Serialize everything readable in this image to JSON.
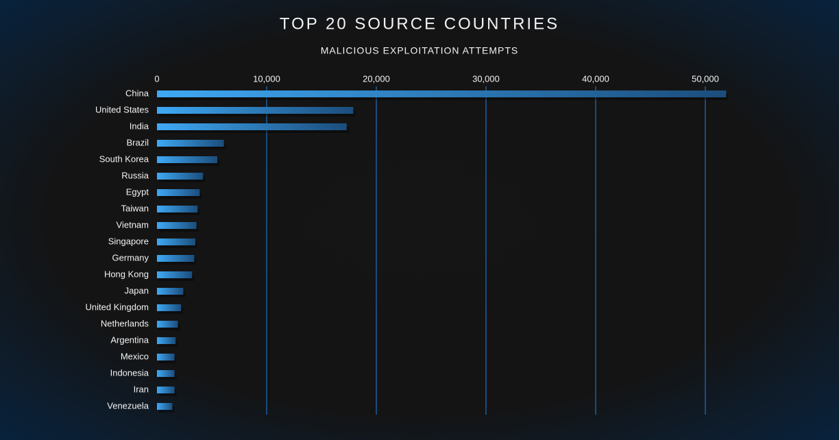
{
  "chart_data": {
    "type": "hbar",
    "title": "TOP 20 SOURCE COUNTRIES",
    "subtitle": "MALICIOUS EXPLOITATION ATTEMPTS",
    "categories": [
      "China",
      "United States",
      "India",
      "Brazil",
      "South Korea",
      "Russia",
      "Egypt",
      "Taiwan",
      "Vietnam",
      "Singapore",
      "Germany",
      "Hong Kong",
      "Japan",
      "United Kingdom",
      "Netherlands",
      "Argentina",
      "Mexico",
      "Indonesia",
      "Iran",
      "Venezuela"
    ],
    "values": [
      51900,
      17900,
      17300,
      6100,
      5500,
      4200,
      3900,
      3700,
      3600,
      3500,
      3400,
      3200,
      2400,
      2200,
      1900,
      1700,
      1600,
      1600,
      1600,
      1400
    ],
    "color": "#3fa9f5",
    "xlim": [
      0,
      52000
    ],
    "xticks": [
      0,
      {
        "value": 10000,
        "label": "10,000"
      },
      {
        "value": 20000,
        "label": "20,000"
      },
      {
        "value": 30000,
        "label": "30,000"
      },
      {
        "value": 40000,
        "label": "40,000"
      },
      {
        "value": 50000,
        "label": "50,000"
      }
    ],
    "grid": true
  }
}
